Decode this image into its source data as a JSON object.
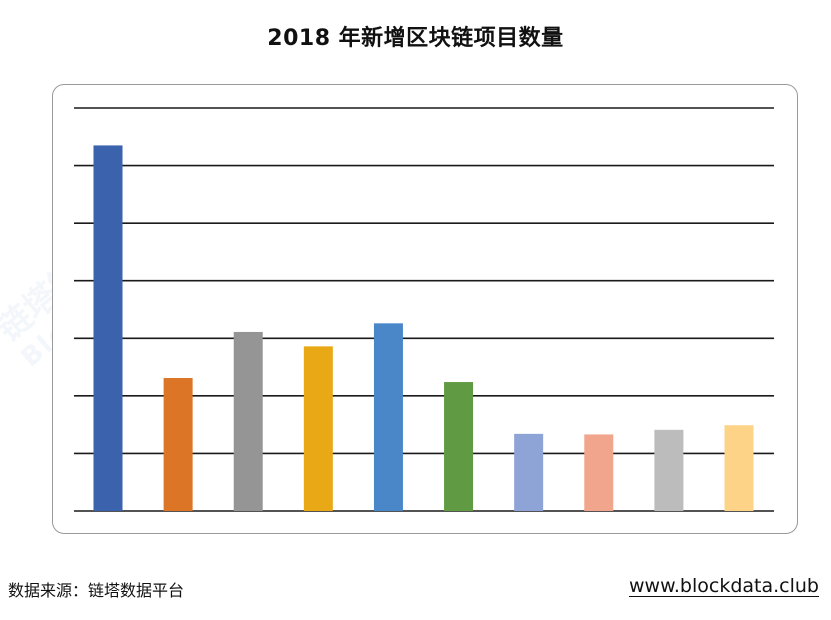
{
  "title": "2018 年新增区块链项目数量",
  "source": "数据来源：链塔数据平台",
  "website": "www.blockdata.club",
  "watermark": {
    "cn": "链塔智库",
    "en": "BlockData"
  },
  "chart_data": {
    "type": "bar",
    "title": "2018 年新增区块链项目数量",
    "xlabel": "",
    "ylabel": "",
    "ylim": [
      0,
      7
    ],
    "yticks": [
      0,
      1,
      2,
      3,
      4,
      5,
      6,
      7
    ],
    "grid": true,
    "tick_labels_visible": false,
    "bars": [
      {
        "value": 6.35,
        "color": "#3a62ad"
      },
      {
        "value": 2.31,
        "color": "#dd7527"
      },
      {
        "value": 3.11,
        "color": "#959595"
      },
      {
        "value": 2.86,
        "color": "#e9a916"
      },
      {
        "value": 3.26,
        "color": "#4a87c8"
      },
      {
        "value": 2.24,
        "color": "#609a43"
      },
      {
        "value": 1.34,
        "color": "#8ea3d6"
      },
      {
        "value": 1.33,
        "color": "#f2a58d"
      },
      {
        "value": 1.41,
        "color": "#bcbcbc"
      },
      {
        "value": 1.49,
        "color": "#fdd388"
      }
    ]
  }
}
